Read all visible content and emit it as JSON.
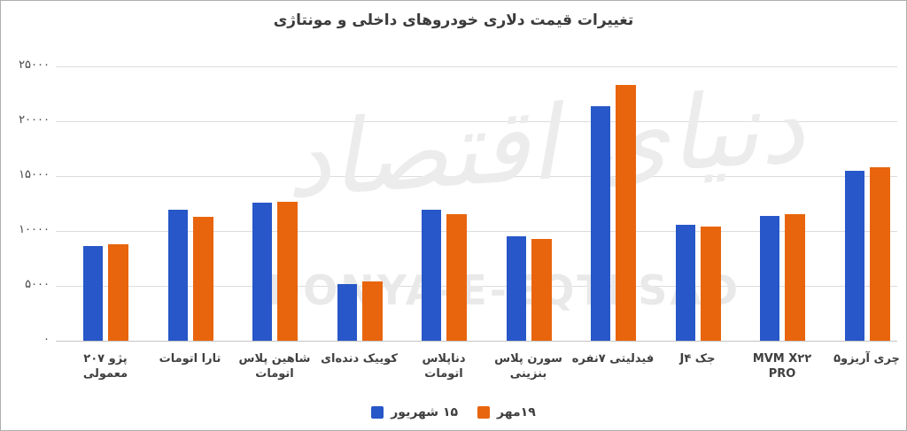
{
  "title": "تغییرات قیمت دلاری خودروهای داخلی و مونتاژی",
  "watermark": {
    "persian": "دنیای اقتصاد",
    "latin": "DONYA-E-EQTESAD"
  },
  "colors": {
    "series_blue": "#2757c8",
    "series_orange": "#e8650e",
    "grid": "#dcdcdc",
    "axis": "#c4c4c4",
    "text": "#3f3f3f"
  },
  "chart_data": {
    "type": "bar",
    "title": "تغییرات قیمت دلاری خودروهای داخلی و مونتاژی",
    "categories": [
      "پژو ۲۰۷ معمولی",
      "تارا اتومات",
      "شاهین پلاس اتومات",
      "کوییک دنده‌ای",
      "دناپلاس اتومات",
      "سورن پلاس بنزینی",
      "فیدلیتی ۷نفره",
      "جک J۴",
      "MVM X۲۲ PRO",
      "چری آریزو۵"
    ],
    "categories_display": [
      [
        "پژو ۲۰۷",
        "معمولی"
      ],
      [
        "تارا اتومات"
      ],
      [
        "شاهین پلاس",
        "اتومات"
      ],
      [
        "کوییک دنده‌ای"
      ],
      [
        "دناپلاس",
        "اتومات"
      ],
      [
        "سورن پلاس",
        "بنزینی"
      ],
      [
        "فیدلیتی ۷نفره"
      ],
      [
        "جک J۴"
      ],
      [
        "MVM X۲۲",
        "PRO"
      ],
      [
        "چری آریزو۵"
      ]
    ],
    "series": [
      {
        "name": "۱۵ شهریور",
        "color": "#2757c8",
        "values": [
          8600,
          11900,
          12600,
          5200,
          11900,
          9500,
          21400,
          10600,
          11400,
          15500
        ]
      },
      {
        "name": "۱۹مهر",
        "color": "#e8650e",
        "values": [
          8800,
          11300,
          12700,
          5400,
          11500,
          9300,
          23300,
          10400,
          11500,
          15800
        ]
      }
    ],
    "ylim": [
      0,
      25000
    ],
    "ytick_step": 5000,
    "yticks_labels": [
      "۰",
      "۵۰۰۰",
      "۱۰۰۰۰",
      "۱۵۰۰۰",
      "۲۰۰۰۰",
      "۲۵۰۰۰"
    ],
    "grid": true,
    "legend_position": "bottom",
    "xlabel": "",
    "ylabel": ""
  }
}
